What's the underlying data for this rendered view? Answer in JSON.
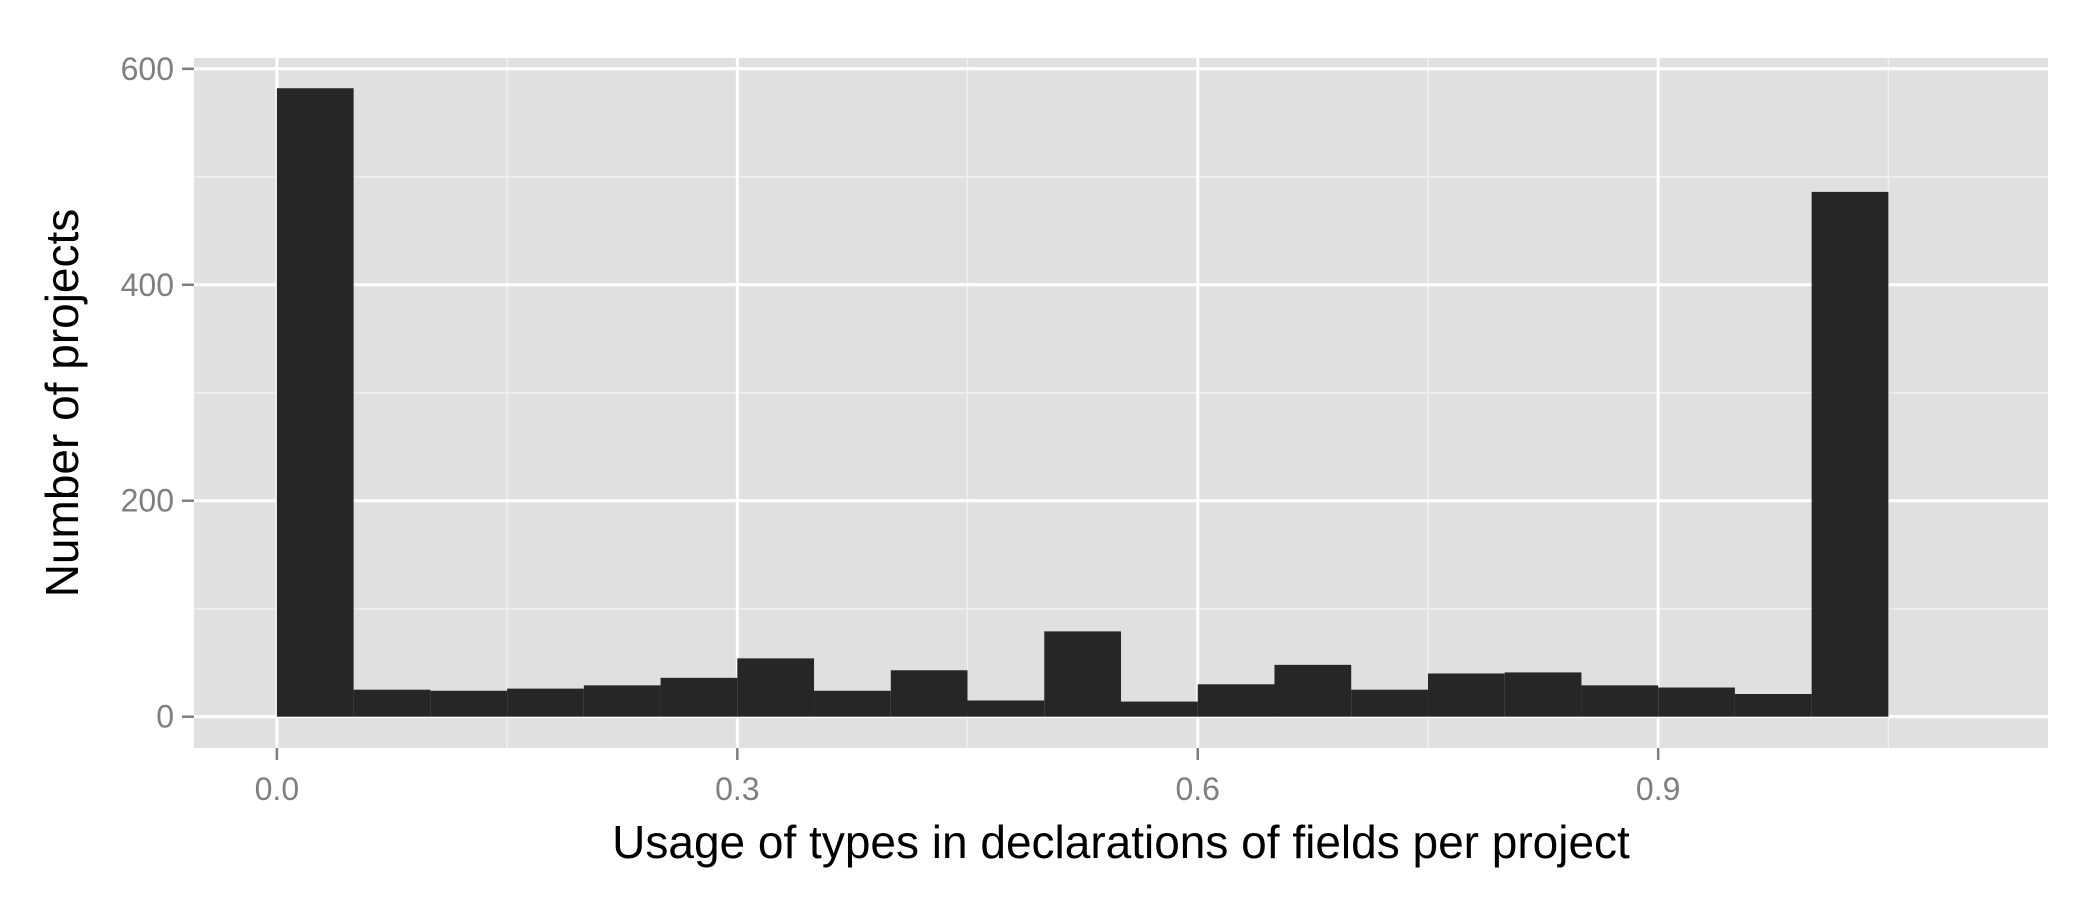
{
  "chart_data": {
    "type": "bar",
    "title": "",
    "xlabel": "Usage of types in declarations of fields per project",
    "ylabel": "Number of projects",
    "bin_width": 0.05,
    "bins": [
      {
        "x0": 0.0,
        "x1": 0.05,
        "value": 582
      },
      {
        "x0": 0.05,
        "x1": 0.1,
        "value": 25
      },
      {
        "x0": 0.1,
        "x1": 0.15,
        "value": 24
      },
      {
        "x0": 0.15,
        "x1": 0.2,
        "value": 26
      },
      {
        "x0": 0.2,
        "x1": 0.25,
        "value": 29
      },
      {
        "x0": 0.25,
        "x1": 0.3,
        "value": 36
      },
      {
        "x0": 0.3,
        "x1": 0.35,
        "value": 54
      },
      {
        "x0": 0.35,
        "x1": 0.4,
        "value": 24
      },
      {
        "x0": 0.4,
        "x1": 0.45,
        "value": 43
      },
      {
        "x0": 0.45,
        "x1": 0.5,
        "value": 15
      },
      {
        "x0": 0.5,
        "x1": 0.55,
        "value": 79
      },
      {
        "x0": 0.55,
        "x1": 0.6,
        "value": 14
      },
      {
        "x0": 0.6,
        "x1": 0.65,
        "value": 30
      },
      {
        "x0": 0.65,
        "x1": 0.7,
        "value": 48
      },
      {
        "x0": 0.7,
        "x1": 0.75,
        "value": 25
      },
      {
        "x0": 0.75,
        "x1": 0.8,
        "value": 40
      },
      {
        "x0": 0.8,
        "x1": 0.85,
        "value": 41
      },
      {
        "x0": 0.85,
        "x1": 0.9,
        "value": 29
      },
      {
        "x0": 0.9,
        "x1": 0.95,
        "value": 27
      },
      {
        "x0": 0.95,
        "x1": 1.0,
        "value": 21
      },
      {
        "x0": 1.0,
        "x1": 1.05,
        "value": 486
      }
    ],
    "xlim": [
      -0.054,
      1.154
    ],
    "ylim": [
      -29,
      610
    ],
    "x_ticks": [
      0.0,
      0.3,
      0.6,
      0.9
    ],
    "x_tick_labels": [
      "0.0",
      "0.3",
      "0.6",
      "0.9"
    ],
    "x_minor_ticks": [
      0.15,
      0.45,
      0.75,
      1.05
    ],
    "y_ticks": [
      0,
      200,
      400,
      600
    ],
    "y_tick_labels": [
      "0",
      "200",
      "400",
      "600"
    ],
    "y_minor_ticks": [
      100,
      300,
      500
    ],
    "grid": true,
    "legend": "none",
    "colors": {
      "bar": "#262626",
      "panel": "#e0e0e0",
      "grid_major": "#ffffff",
      "grid_minor": "#f0f0f0",
      "tick_label": "#7f7f7f",
      "axis_title": "#000000"
    }
  }
}
